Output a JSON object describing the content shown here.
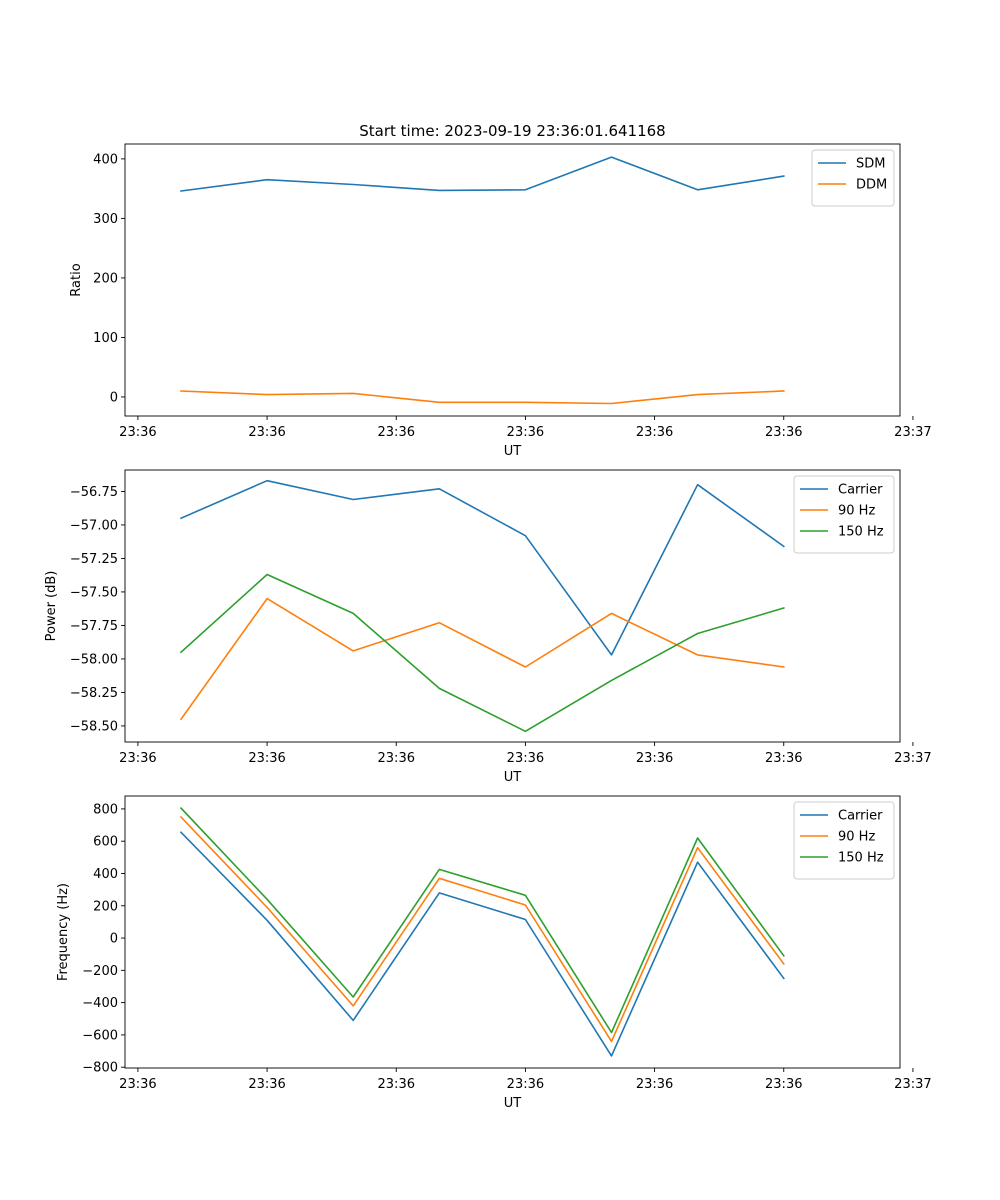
{
  "figure": {
    "title": "Start time: 2023-09-19 23:36:01.641168"
  },
  "chart_data": [
    {
      "type": "line",
      "title": "Start time: 2023-09-19 23:36:01.641168",
      "xlabel": "UT",
      "ylabel": "Ratio",
      "xtick_labels": [
        "23:36",
        "23:36",
        "23:36",
        "23:36",
        "23:36",
        "23:36",
        "23:37"
      ],
      "xlim": [
        -0.65,
        8.35
      ],
      "ylim": [
        -32,
        425
      ],
      "yticks": [
        0,
        100,
        200,
        300,
        400
      ],
      "ytick_labels": [
        "0",
        "100",
        "200",
        "300",
        "400"
      ],
      "legend": "top-right",
      "x": [
        0,
        1,
        2,
        3,
        4,
        5,
        6,
        7
      ],
      "series": [
        {
          "name": "SDM",
          "color": "#1f77b4",
          "values": [
            346,
            365,
            357,
            347,
            348,
            403,
            348,
            371
          ]
        },
        {
          "name": "DDM",
          "color": "#ff7f0e",
          "values": [
            10,
            4,
            6,
            -9,
            -9,
            -11,
            4,
            10
          ]
        }
      ]
    },
    {
      "type": "line",
      "title": "",
      "xlabel": "UT",
      "ylabel": "Power (dB)",
      "xtick_labels": [
        "23:36",
        "23:36",
        "23:36",
        "23:36",
        "23:36",
        "23:36",
        "23:37"
      ],
      "xlim": [
        -0.65,
        8.35
      ],
      "ylim": [
        -58.62,
        -56.59
      ],
      "yticks": [
        -58.5,
        -58.25,
        -58.0,
        -57.75,
        -57.5,
        -57.25,
        -57.0,
        -56.75
      ],
      "ytick_labels": [
        "−58.50",
        "−58.25",
        "−58.00",
        "−57.75",
        "−57.50",
        "−57.25",
        "−57.00",
        "−56.75"
      ],
      "legend": "top-right",
      "x": [
        0,
        1,
        2,
        3,
        4,
        5,
        6,
        7
      ],
      "series": [
        {
          "name": "Carrier",
          "color": "#1f77b4",
          "values": [
            -56.95,
            -56.67,
            -56.81,
            -56.73,
            -57.08,
            -57.97,
            -56.7,
            -57.16
          ]
        },
        {
          "name": "90 Hz",
          "color": "#ff7f0e",
          "values": [
            -58.45,
            -57.55,
            -57.94,
            -57.73,
            -58.06,
            -57.66,
            -57.97,
            -58.06
          ]
        },
        {
          "name": "150 Hz",
          "color": "#2ca02c",
          "values": [
            -57.95,
            -57.37,
            -57.66,
            -58.22,
            -58.54,
            -58.16,
            -57.81,
            -57.62
          ]
        }
      ]
    },
    {
      "type": "line",
      "title": "",
      "xlabel": "UT",
      "ylabel": "Frequency (Hz)",
      "xtick_labels": [
        "23:36",
        "23:36",
        "23:36",
        "23:36",
        "23:36",
        "23:36",
        "23:37"
      ],
      "xlim": [
        -0.65,
        8.35
      ],
      "ylim": [
        -805,
        880
      ],
      "yticks": [
        -800,
        -600,
        -400,
        -200,
        0,
        200,
        400,
        600,
        800
      ],
      "ytick_labels": [
        "−800",
        "−600",
        "−400",
        "−200",
        "0",
        "200",
        "400",
        "600",
        "800"
      ],
      "legend": "top-right",
      "x": [
        0,
        1,
        2,
        3,
        4,
        5,
        6,
        7
      ],
      "series": [
        {
          "name": "Carrier",
          "color": "#1f77b4",
          "values": [
            655,
            110,
            -510,
            280,
            115,
            -730,
            470,
            -250
          ]
        },
        {
          "name": "90 Hz",
          "color": "#ff7f0e",
          "values": [
            750,
            190,
            -420,
            370,
            205,
            -640,
            560,
            -160
          ]
        },
        {
          "name": "150 Hz",
          "color": "#2ca02c",
          "values": [
            805,
            240,
            -365,
            425,
            265,
            -585,
            620,
            -110
          ]
        }
      ]
    }
  ]
}
